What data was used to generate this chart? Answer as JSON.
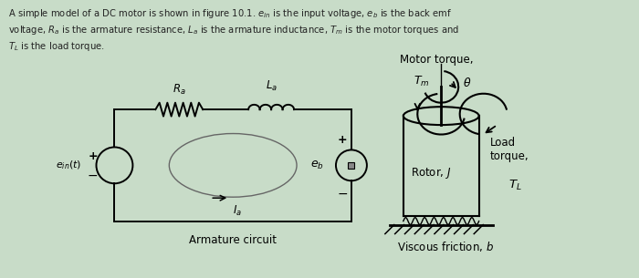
{
  "bg_color": "#c8dcc8",
  "text_color": "#222222",
  "title_text": "A simple model of a DC motor is shown in figure 10.1. $e_{in}$ is the input voltage, $e_b$ is the back emf\nvoltage, $R_a$ is the armature resistance, $L_a$ is the armature inductance, $T_m$ is the motor torques and\n$T_L$ is the load torque.",
  "armature_label": "Armature circuit",
  "viscous_label": "Viscous friction, $b$",
  "motor_torque_label": "Motor torque,",
  "Tm_label": "$T_m$",
  "theta_label": "$\\theta$",
  "load_torque_label": "Load\ntorque,",
  "TL_label": "$T_L$",
  "rotor_label": "Rotor, $J$",
  "Ra_label": "$R_a$",
  "La_label": "$L_a$",
  "ein_label": "$e_{in}(t)$",
  "Ia_label": "$I_a$",
  "eb_label": "$e_b$",
  "plus": "+",
  "minus": "−"
}
